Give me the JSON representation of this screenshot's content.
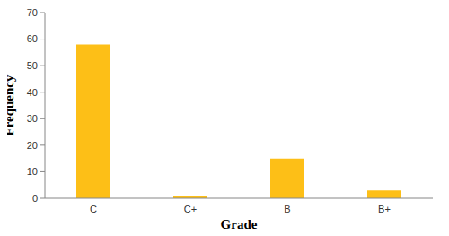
{
  "chart_data": {
    "type": "bar",
    "categories": [
      "C",
      "C+",
      "B",
      "B+"
    ],
    "values": [
      58,
      1,
      15,
      3
    ],
    "color": "#fdbf17",
    "xlabel": "Grade",
    "ylabel": "Frequency",
    "ylim": [
      0,
      70
    ],
    "yticks": [
      0,
      10,
      20,
      30,
      40,
      50,
      60,
      70
    ],
    "grid": false
  }
}
